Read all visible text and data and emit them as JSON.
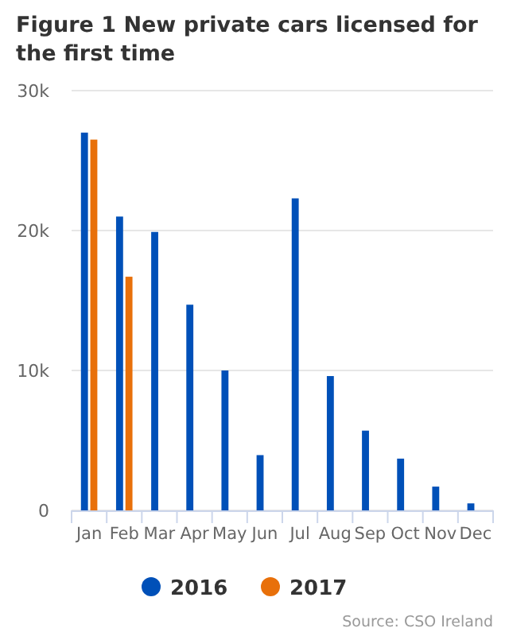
{
  "chart_data": {
    "type": "bar",
    "title": "Figure 1 New private cars licensed for the first time",
    "categories": [
      "Jan",
      "Feb",
      "Mar",
      "Apr",
      "May",
      "Jun",
      "Jul",
      "Aug",
      "Sep",
      "Oct",
      "Nov",
      "Dec"
    ],
    "series": [
      {
        "name": "2016",
        "color": "#0050b8",
        "values": [
          27000,
          21000,
          19900,
          14700,
          10000,
          3950,
          22300,
          9600,
          5700,
          3700,
          1700,
          500
        ]
      },
      {
        "name": "2017",
        "color": "#e8700a",
        "values": [
          26500,
          16700,
          null,
          null,
          null,
          null,
          null,
          null,
          null,
          null,
          null,
          null
        ]
      }
    ],
    "ylim": [
      0,
      30000
    ],
    "yticks": [
      {
        "value": 0,
        "label": "0"
      },
      {
        "value": 10000,
        "label": "10k"
      },
      {
        "value": 20000,
        "label": "20k"
      },
      {
        "value": 30000,
        "label": "30k"
      }
    ],
    "grid": "y",
    "legend": "bottom",
    "annotations": [
      "Source: CSO Ireland"
    ]
  }
}
